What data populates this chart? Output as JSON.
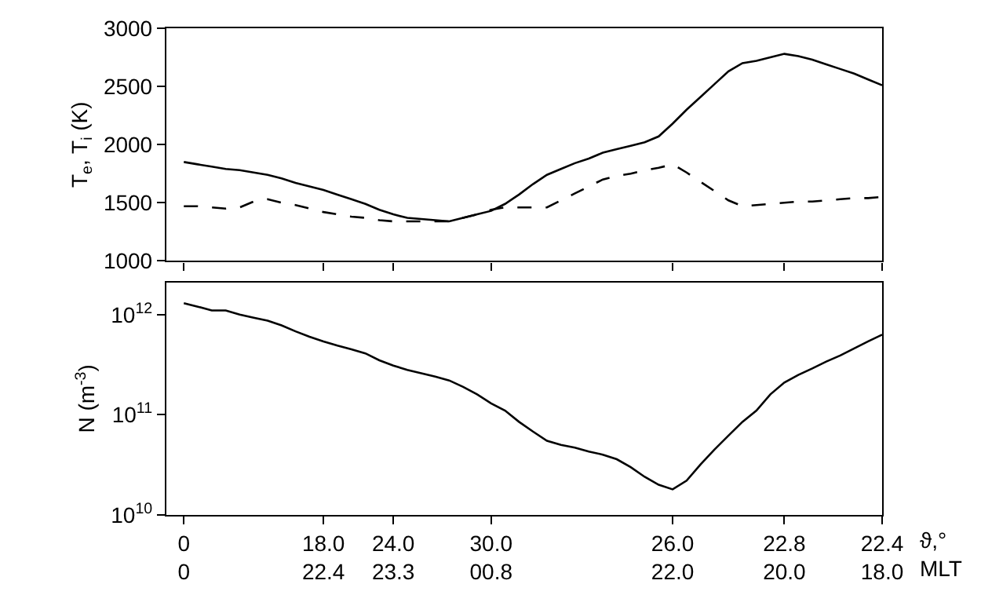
{
  "chart_data": [
    {
      "type": "line",
      "ylabel": "T$_{e}$, T$_{i}$ (K)",
      "ylim": [
        1000,
        3000
      ],
      "yticks": [
        1000,
        1500,
        2000,
        2500,
        3000
      ],
      "marker": "none",
      "categories": [
        null,
        null,
        null,
        null,
        null,
        null,
        null,
        null,
        null,
        null,
        null,
        null,
        null,
        null,
        null,
        null,
        null,
        null,
        null,
        null,
        null,
        null,
        null,
        null,
        null,
        null,
        null,
        null,
        null,
        null,
        null,
        null,
        null,
        null,
        null,
        null,
        null,
        null,
        null,
        null,
        null,
        null,
        null,
        null,
        null,
        null,
        null,
        null,
        null,
        null,
        null
      ],
      "series": [
        {
          "color": "#000000",
          "line_style": "solid",
          "values": [
            1850,
            1830,
            1810,
            1790,
            1780,
            1760,
            1740,
            1710,
            1670,
            1640,
            1610,
            1570,
            1530,
            1490,
            1440,
            1400,
            1370,
            1360,
            1350,
            1340,
            1370,
            1400,
            1430,
            1490,
            1570,
            1660,
            1740,
            1790,
            1840,
            1880,
            1930,
            1960,
            1990,
            2020,
            2070,
            2180,
            2300,
            2410,
            2520,
            2630,
            2700,
            2720,
            2750,
            2780,
            2760,
            2730,
            2690,
            2650,
            2610,
            2560,
            2510
          ]
        },
        {
          "color": "#000000",
          "line_style": "dashed",
          "values": [
            1470,
            1470,
            1460,
            1450,
            1460,
            1510,
            1530,
            1500,
            1480,
            1450,
            1420,
            1400,
            1380,
            1370,
            1350,
            1340,
            1340,
            1340,
            1340,
            1340,
            1370,
            1400,
            1440,
            1460,
            1460,
            1460,
            1460,
            1520,
            1580,
            1640,
            1700,
            1730,
            1750,
            1780,
            1800,
            1830,
            1760,
            1680,
            1600,
            1520,
            1470,
            1480,
            1490,
            1500,
            1510,
            1510,
            1520,
            1530,
            1540,
            1540,
            1550
          ]
        }
      ]
    },
    {
      "type": "line",
      "ylabel": "N (m$^{-3}$)",
      "xlabel": "ϑ,°\nMLT",
      "log": "y",
      "ylim": [
        10000000000.0,
        2100000000000.0
      ],
      "marker": "none",
      "yticks": [
        {
          "value": 10000000000.0,
          "label": "10$^{10}$"
        },
        {
          "value": 100000000000.0,
          "label": "10$^{11}$"
        },
        {
          "value": 1000000000000.0,
          "label": "10$^{12}$"
        }
      ],
      "categories": [
        "0\n0",
        null,
        null,
        null,
        null,
        null,
        null,
        null,
        null,
        null,
        "18.0\n22.4",
        null,
        null,
        null,
        null,
        "24.0\n23.3",
        null,
        null,
        null,
        null,
        null,
        null,
        "30.0\n00.8",
        null,
        null,
        null,
        null,
        null,
        null,
        null,
        null,
        null,
        null,
        null,
        null,
        "26.0\n22.0",
        null,
        null,
        null,
        null,
        null,
        null,
        null,
        "22.8\n20.0",
        null,
        null,
        null,
        null,
        null,
        null,
        "22.4\n18.0"
      ],
      "series": [
        {
          "color": "#000000",
          "line_style": "solid",
          "values": [
            1300000000000.0,
            1200000000000.0,
            1100000000000.0,
            1100000000000.0,
            1000000000000.0,
            930000000000.0,
            870000000000.0,
            780000000000.0,
            680000000000.0,
            600000000000.0,
            540000000000.0,
            490000000000.0,
            450000000000.0,
            410000000000.0,
            350000000000.0,
            310000000000.0,
            280000000000.0,
            260000000000.0,
            240000000000.0,
            220000000000.0,
            190000000000.0,
            160000000000.0,
            130000000000.0,
            110000000000.0,
            85000000000.0,
            68000000000.0,
            55000000000.0,
            50000000000.0,
            47000000000.0,
            43000000000.0,
            40000000000.0,
            36000000000.0,
            30000000000.0,
            24000000000.0,
            20000000000.0,
            18000000000.0,
            22000000000.0,
            32000000000.0,
            45000000000.0,
            62000000000.0,
            85000000000.0,
            110000000000.0,
            160000000000.0,
            210000000000.0,
            250000000000.0,
            290000000000.0,
            340000000000.0,
            390000000000.0,
            460000000000.0,
            540000000000.0,
            630000000000.0
          ]
        }
      ]
    }
  ]
}
